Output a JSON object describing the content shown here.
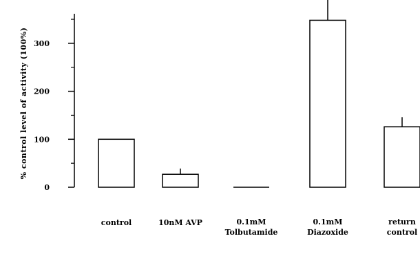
{
  "chart_data": {
    "type": "bar",
    "ylabel": "% control level of activity (100%)",
    "xlabel": "",
    "ylim": [
      0,
      420
    ],
    "yticks": [
      "0",
      "100",
      "200",
      "300",
      "400"
    ],
    "grid": false,
    "categories": [
      [
        "control"
      ],
      [
        "10nM AVP"
      ],
      [
        "0.1mM",
        "Tolbutamide"
      ],
      [
        "0.1mM",
        "Diazoxide"
      ],
      [
        "return",
        "control"
      ]
    ],
    "values": [
      100,
      27,
      0,
      348,
      126
    ],
    "error_bars": [
      0,
      12,
      0,
      70,
      20
    ]
  }
}
